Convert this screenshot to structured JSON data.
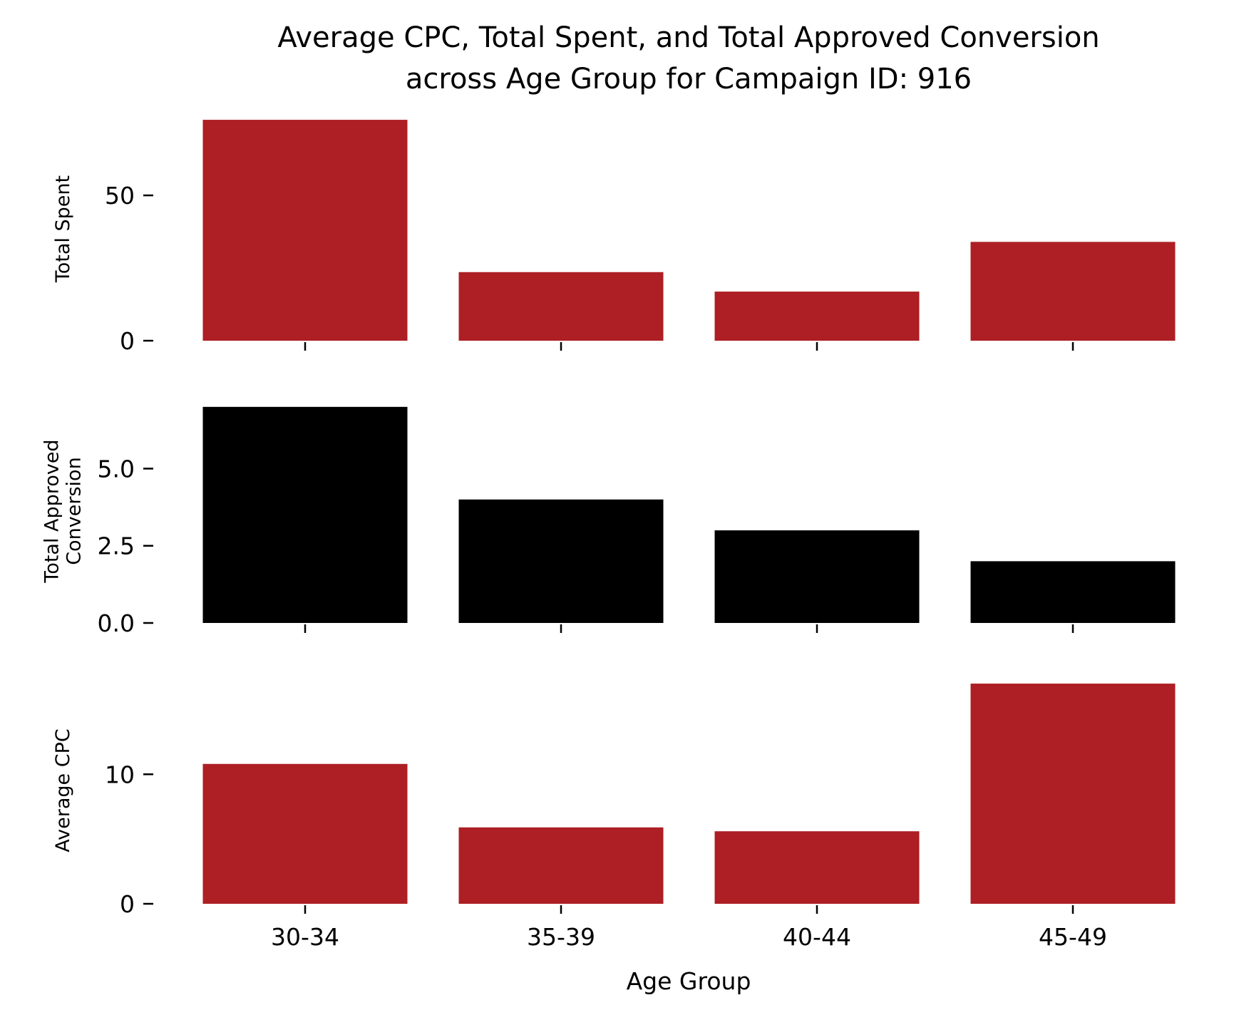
{
  "chart_data": {
    "type": "bar",
    "title_lines": [
      "Average CPC, Total Spent, and Total Approved Conversion",
      "across Age Group for Campaign ID: 916"
    ],
    "xlabel": "Age Group",
    "categories": [
      "30-34",
      "35-39",
      "40-44",
      "45-49"
    ],
    "grid": false,
    "panels": [
      {
        "ylabel_lines": [
          "Total Spent"
        ],
        "values": [
          76.0,
          23.6,
          16.9,
          34.0
        ],
        "ylim": [
          0,
          77
        ],
        "yticks": [
          0,
          50
        ],
        "ytick_labels": [
          "0",
          "50"
        ],
        "color": "#ad1f24"
      },
      {
        "ylabel_lines": [
          "Total Approved",
          "Conversion"
        ],
        "values": [
          7,
          4,
          3,
          2
        ],
        "ylim": [
          0,
          7.25
        ],
        "yticks": [
          0,
          2.5,
          5.0
        ],
        "ytick_labels": [
          "0.0",
          "2.5",
          "5.0"
        ],
        "color": "#000000"
      },
      {
        "ylabel_lines": [
          "Average CPC"
        ],
        "values": [
          10.8,
          5.9,
          5.6,
          17.0
        ],
        "ylim": [
          0,
          17.5
        ],
        "yticks": [
          0,
          10
        ],
        "ytick_labels": [
          "0",
          "10"
        ],
        "color": "#ad1f24"
      }
    ]
  }
}
